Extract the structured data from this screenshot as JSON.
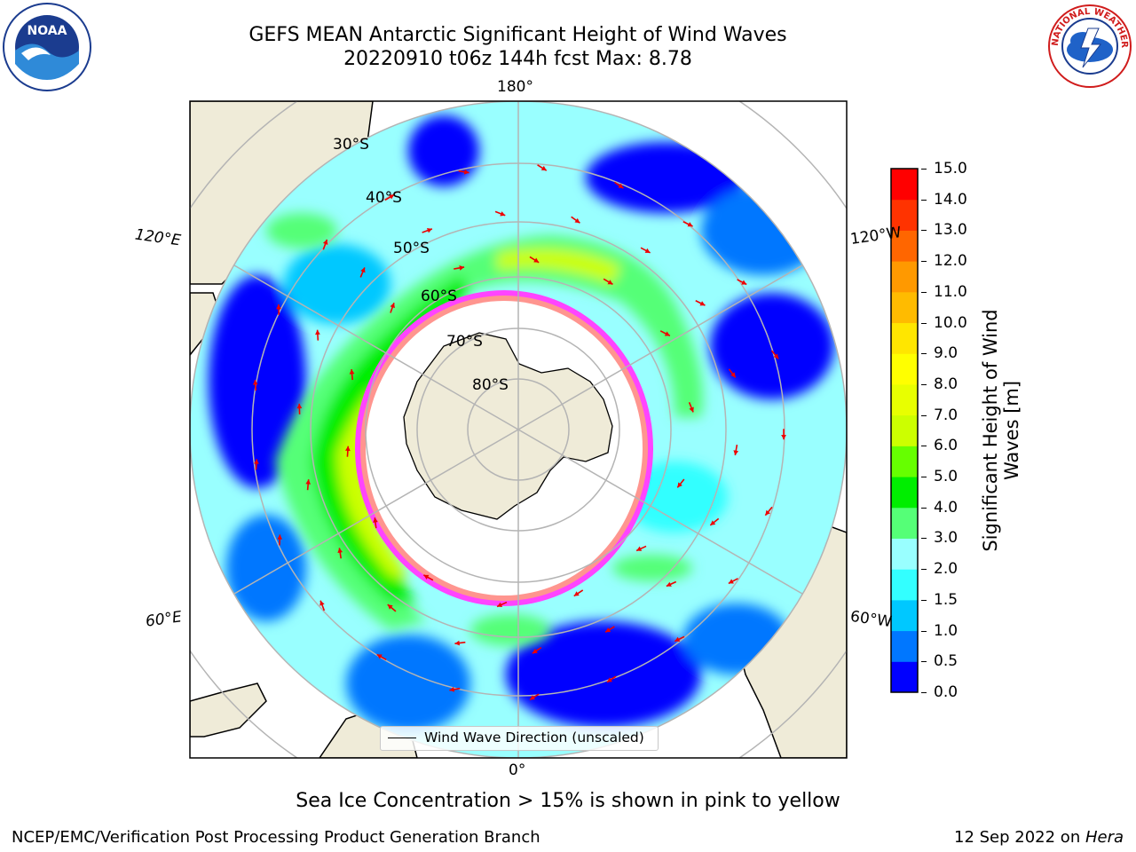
{
  "header": {
    "title_line1": "GEFS MEAN Antarctic Significant Height of Wind Waves",
    "title_line2": "20220910 t06z 144h fcst   Max: 8.78"
  },
  "logos": {
    "left": {
      "name": "noaa-logo",
      "text": "NOAA"
    },
    "right": {
      "name": "nws-logo",
      "text": "NATIONAL WEATHER SERVICE"
    }
  },
  "map": {
    "projection": "south-polar-stereographic",
    "longitude_labels": {
      "top": "180°",
      "bottom": "0°",
      "upper_left": "120°E",
      "lower_left": "60°E",
      "upper_right": "120°W",
      "lower_right": "60°W"
    },
    "latitude_labels": [
      "30°S",
      "40°S",
      "50°S",
      "60°S",
      "70°S",
      "80°S"
    ],
    "legend": {
      "entry": "Wind Wave Direction (unscaled)"
    },
    "colors": {
      "land": "#efebd8",
      "sea_ice_low": "#ff44ff",
      "sea_ice_high": "#ffcc44",
      "arrow": "#ee0000",
      "gridline": "#b4b4b4"
    }
  },
  "colorbar": {
    "title_line1": "Significant Height of Wind",
    "title_line2": "Waves [m]",
    "levels": [
      0.0,
      0.5,
      1.0,
      1.5,
      2.0,
      3.0,
      4.0,
      5.0,
      6.0,
      7.0,
      8.0,
      9.0,
      10.0,
      11.0,
      12.0,
      13.0,
      14.0,
      15.0
    ],
    "tick_labels": [
      "0.0",
      "0.5",
      "1.0",
      "1.5",
      "2.0",
      "3.0",
      "4.0",
      "5.0",
      "6.0",
      "7.0",
      "8.0",
      "9.0",
      "10.0",
      "11.0",
      "12.0",
      "13.0",
      "14.0",
      "15.0"
    ],
    "colors": [
      "#0000ff",
      "#0077ff",
      "#00c8ff",
      "#33ffff",
      "#99ffff",
      "#55ff77",
      "#00ee00",
      "#66ff00",
      "#ccff00",
      "#e8ff00",
      "#ffff00",
      "#ffe600",
      "#ffbb00",
      "#ff9900",
      "#ff6600",
      "#ff3300",
      "#ff0000"
    ]
  },
  "footer": {
    "note": "Sea Ice Concentration > 15% is shown in pink to yellow",
    "left": "NCEP/EMC/Verification Post Processing Product Generation Branch",
    "right_prefix": "12 Sep 2022 on ",
    "right_host": "Hera"
  }
}
